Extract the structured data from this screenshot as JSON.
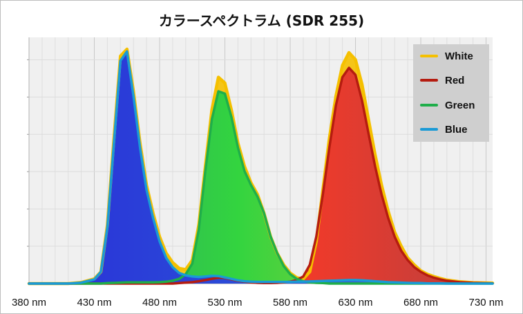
{
  "chart_data": {
    "type": "area",
    "title": "カラースペクトラム (SDR 255)",
    "xlabel": "",
    "ylabel": "",
    "xlim": [
      380,
      735
    ],
    "ylim": [
      0,
      1.05
    ],
    "x_ticks": [
      "380 nm",
      "430 nm",
      "480 nm",
      "530 nm",
      "580 nm",
      "630 nm",
      "680 nm",
      "730 nm"
    ],
    "grid": true,
    "legend_position": "top-right",
    "x": [
      380,
      390,
      400,
      410,
      420,
      430,
      435,
      440,
      445,
      450,
      455,
      460,
      465,
      470,
      475,
      480,
      485,
      490,
      495,
      500,
      505,
      510,
      515,
      520,
      525,
      530,
      535,
      540,
      545,
      550,
      555,
      560,
      565,
      570,
      575,
      580,
      585,
      590,
      595,
      600,
      605,
      610,
      615,
      620,
      625,
      630,
      635,
      640,
      645,
      650,
      655,
      660,
      665,
      670,
      675,
      680,
      685,
      690,
      695,
      700,
      710,
      720,
      735
    ],
    "series": [
      {
        "name": "White",
        "color": "#f5c000",
        "values": [
          0,
          0,
          0,
          0,
          0.005,
          0.02,
          0.05,
          0.25,
          0.62,
          0.97,
          1.0,
          0.82,
          0.6,
          0.42,
          0.3,
          0.2,
          0.13,
          0.09,
          0.065,
          0.06,
          0.1,
          0.25,
          0.5,
          0.74,
          0.88,
          0.855,
          0.74,
          0.6,
          0.5,
          0.43,
          0.38,
          0.3,
          0.2,
          0.13,
          0.08,
          0.045,
          0.025,
          0.02,
          0.05,
          0.18,
          0.4,
          0.62,
          0.8,
          0.93,
          0.985,
          0.955,
          0.85,
          0.7,
          0.55,
          0.42,
          0.31,
          0.22,
          0.16,
          0.11,
          0.08,
          0.055,
          0.04,
          0.03,
          0.022,
          0.015,
          0.008,
          0.004,
          0.002
        ]
      },
      {
        "name": "Red",
        "color": "#b51c10",
        "values": [
          0,
          0,
          0,
          0,
          0,
          0,
          0,
          0,
          0,
          0,
          0,
          0,
          0,
          0,
          0,
          0,
          0,
          0,
          0.002,
          0.004,
          0.006,
          0.01,
          0.015,
          0.02,
          0.025,
          0.024,
          0.018,
          0.012,
          0.008,
          0.005,
          0.003,
          0.002,
          0.002,
          0.003,
          0.005,
          0.008,
          0.015,
          0.03,
          0.08,
          0.2,
          0.38,
          0.58,
          0.76,
          0.88,
          0.92,
          0.89,
          0.78,
          0.64,
          0.5,
          0.38,
          0.28,
          0.2,
          0.14,
          0.1,
          0.07,
          0.05,
          0.035,
          0.025,
          0.018,
          0.012,
          0.006,
          0.003,
          0.001
        ]
      },
      {
        "name": "Green",
        "color": "#1fae4a",
        "values": [
          0,
          0,
          0,
          0,
          0,
          0,
          0,
          0.002,
          0.003,
          0.004,
          0.005,
          0.005,
          0.005,
          0.005,
          0.005,
          0.006,
          0.008,
          0.012,
          0.02,
          0.04,
          0.085,
          0.23,
          0.48,
          0.7,
          0.82,
          0.81,
          0.71,
          0.58,
          0.48,
          0.42,
          0.37,
          0.3,
          0.2,
          0.13,
          0.075,
          0.04,
          0.02,
          0.01,
          0.005,
          0.003,
          0.002,
          0,
          0,
          0,
          0,
          0,
          0,
          0,
          0,
          0,
          0,
          0,
          0,
          0,
          0,
          0,
          0,
          0,
          0,
          0,
          0,
          0,
          0
        ]
      },
      {
        "name": "Blue",
        "color": "#1a9ad6",
        "values": [
          0,
          0,
          0,
          0,
          0.004,
          0.018,
          0.05,
          0.24,
          0.6,
          0.95,
          0.99,
          0.8,
          0.58,
          0.4,
          0.28,
          0.18,
          0.11,
          0.07,
          0.045,
          0.035,
          0.03,
          0.028,
          0.03,
          0.033,
          0.032,
          0.026,
          0.02,
          0.014,
          0.01,
          0.008,
          0.007,
          0.007,
          0.007,
          0.007,
          0.007,
          0.007,
          0.008,
          0.008,
          0.009,
          0.01,
          0.011,
          0.012,
          0.013,
          0.014,
          0.015,
          0.015,
          0.014,
          0.012,
          0.01,
          0.008,
          0.006,
          0.005,
          0.004,
          0.003,
          0.002,
          0.002,
          0.001,
          0.001,
          0.001,
          0,
          0,
          0,
          0
        ]
      }
    ]
  }
}
